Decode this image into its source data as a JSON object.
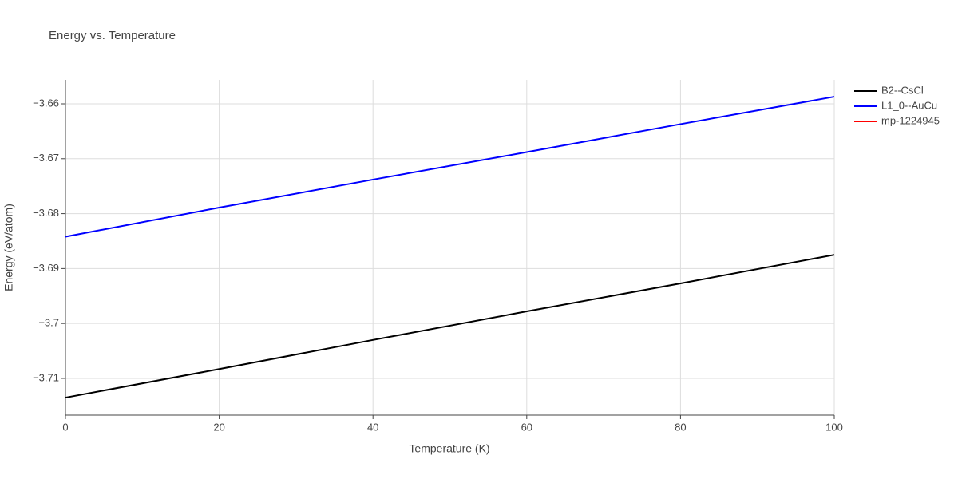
{
  "chart_data": {
    "type": "line",
    "title": "Energy vs. Temperature",
    "x_label": "Temperature (K)",
    "y_label": "Energy (eV/atom)",
    "x": [
      0,
      20,
      40,
      60,
      80,
      100
    ],
    "series": [
      {
        "name": "B2--CsCl",
        "color": "#000000",
        "values": [
          -3.7135,
          -3.7083,
          -3.703,
          -3.6978,
          -3.6927,
          -3.6875
        ]
      },
      {
        "name": "L1_0--AuCu",
        "color": "#0000ff",
        "values": [
          -3.6842,
          -3.6789,
          -3.6738,
          -3.6688,
          -3.6637,
          -3.6587
        ]
      },
      {
        "name": "mp-1224945",
        "color": "#ff0000",
        "values": [
          null,
          null,
          null,
          null,
          null,
          null
        ]
      }
    ],
    "xlim": [
      0,
      100
    ],
    "xticks": [
      0,
      20,
      40,
      60,
      80,
      100
    ],
    "ylim": [
      -3.71669,
      -3.65564
    ],
    "yticks": [
      {
        "value": -3.71,
        "label": "−3.71"
      },
      {
        "value": -3.7,
        "label": "−3.7"
      },
      {
        "value": -3.69,
        "label": "−3.69"
      },
      {
        "value": -3.68,
        "label": "−3.68"
      },
      {
        "value": -3.67,
        "label": "−3.67"
      },
      {
        "value": -3.66,
        "label": "−3.66"
      }
    ],
    "grid": true
  }
}
